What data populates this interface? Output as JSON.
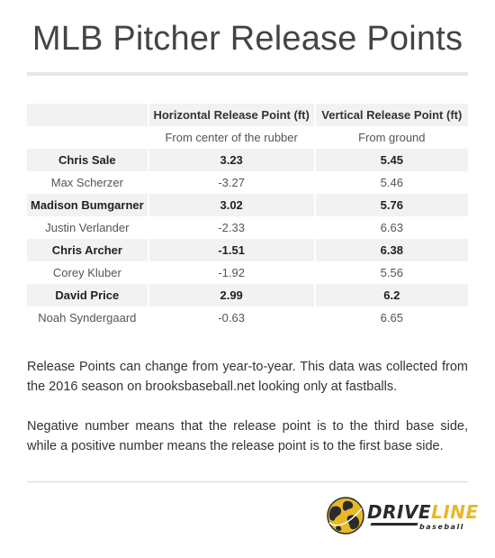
{
  "title": "MLB Pitcher Release Points",
  "table": {
    "headers": [
      "",
      "Horizontal Release Point (ft)",
      "Vertical Release Point (ft)"
    ],
    "subheaders": [
      "",
      "From center of the rubber",
      "From ground"
    ],
    "rows": [
      {
        "name": "Chris Sale",
        "horizontal": "3.23",
        "vertical": "5.45"
      },
      {
        "name": "Max Scherzer",
        "horizontal": "-3.27",
        "vertical": "5.46"
      },
      {
        "name": "Madison Bumgarner",
        "horizontal": "3.02",
        "vertical": "5.76"
      },
      {
        "name": "Justin Verlander",
        "horizontal": "-2.33",
        "vertical": "6.63"
      },
      {
        "name": "Chris Archer",
        "horizontal": "-1.51",
        "vertical": "6.38"
      },
      {
        "name": "Corey Kluber",
        "horizontal": "-1.92",
        "vertical": "5.56"
      },
      {
        "name": "David Price",
        "horizontal": "2.99",
        "vertical": "6.2"
      },
      {
        "name": "Noah Syndergaard",
        "horizontal": "-0.63",
        "vertical": "6.65"
      }
    ]
  },
  "notes": [
    "Release Points can change from year-to-year. This data was collected from the 2016 season on brooksbaseball.net looking only at fastballs.",
    "Negative number means that the release point is to the third base side, while a positive number means the release point is to the first base side."
  ],
  "logo": {
    "part1": "DRIVE",
    "part2": "LINE",
    "sub": "baseball",
    "icon": "baseball-globe-icon",
    "colors": {
      "yellow": "#e8b829",
      "dark": "#2b2b2b"
    }
  }
}
